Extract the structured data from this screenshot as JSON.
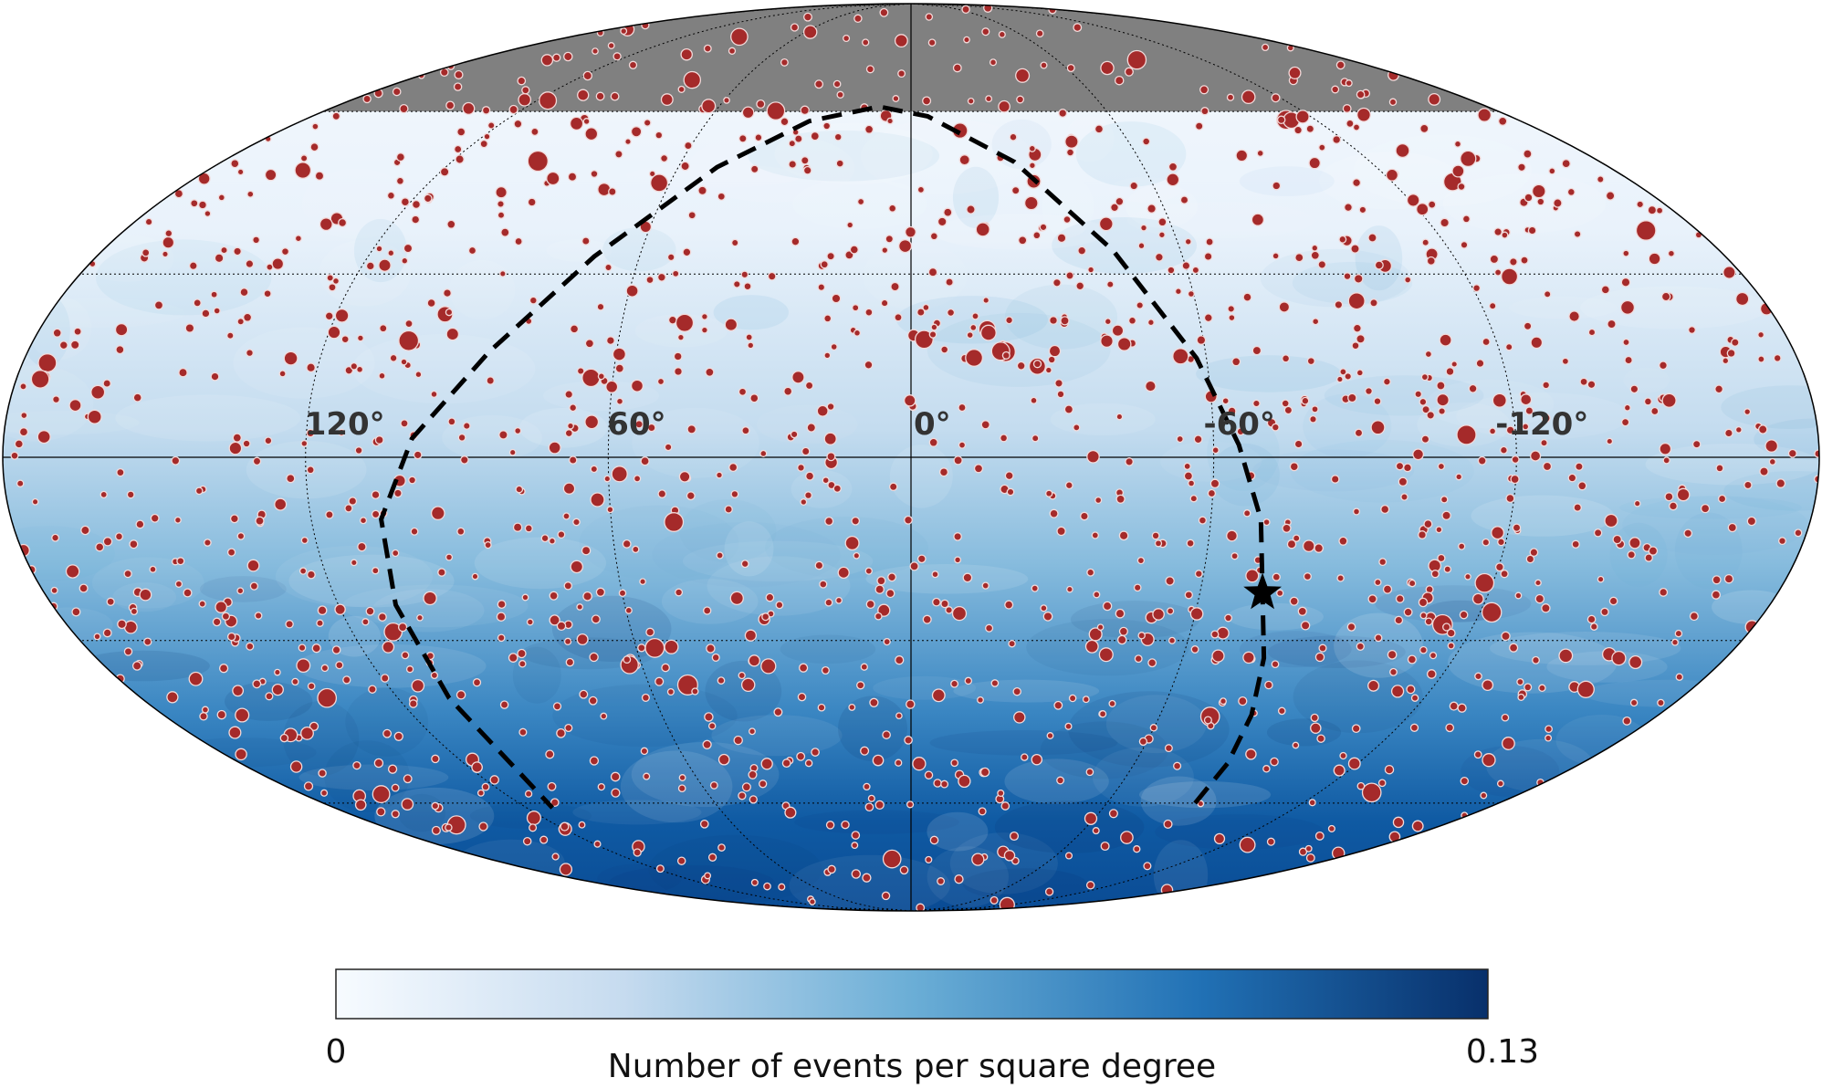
{
  "chart_data": {
    "type": "heatmap",
    "projection": "mollweide",
    "title": "",
    "grid": true,
    "background_colormap": "Blues",
    "masked_region_color": "#808080",
    "source_marker_color": "#a52a2a",
    "longitude_labels": [
      "120°",
      "60°",
      "0°",
      "-60°",
      "-120°"
    ],
    "longitude_ticks_deg": [
      120,
      60,
      0,
      -60,
      -120
    ],
    "latitude_gridlines_deg": [
      -60,
      -30,
      0,
      30,
      60
    ],
    "masked_above_dec_deg": 60,
    "colorbar": {
      "label": "Number of events per square degree",
      "min_label": "0",
      "max_label": "0.13",
      "range": [
        0,
        0.13
      ],
      "colors": [
        "#f7fbff",
        "#c6dbef",
        "#6baed6",
        "#2171b5",
        "#08306b"
      ]
    },
    "highlighted_source": {
      "marker": "star",
      "lon_deg": -73,
      "lat_deg": -22
    },
    "dashed_contour": [
      [
        -87,
        -60
      ],
      [
        -85,
        -52
      ],
      [
        -82,
        -43
      ],
      [
        -78,
        -33
      ],
      [
        -73,
        -22
      ],
      [
        -70,
        -10
      ],
      [
        -65,
        2
      ],
      [
        -58,
        16
      ],
      [
        -45,
        34
      ],
      [
        -27,
        50
      ],
      [
        -5,
        59
      ],
      [
        10,
        61
      ],
      [
        30,
        58
      ],
      [
        50,
        49
      ],
      [
        70,
        33
      ],
      [
        86,
        17
      ],
      [
        99,
        3
      ],
      [
        106,
        -10
      ],
      [
        108,
        -24
      ],
      [
        108,
        -40
      ],
      [
        108,
        -54
      ],
      [
        112,
        -61
      ]
    ]
  }
}
